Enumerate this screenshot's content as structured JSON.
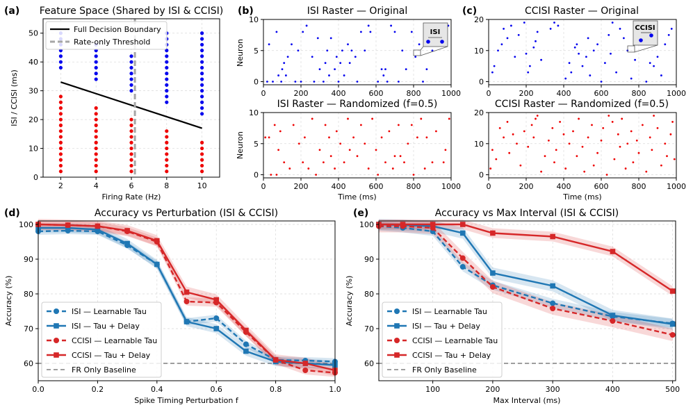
{
  "colors": {
    "blue": "#1f77b4",
    "red": "#d62728",
    "scatter_blue": "#0000ee",
    "scatter_red": "#ee0000",
    "grid": "#d9d9d9",
    "baseline": "#7f7f7f",
    "threshold": "#a6a6a6"
  },
  "chart_data": [
    {
      "panel": "(a)",
      "type": "scatter",
      "title": "Feature Space (Shared by ISI & CCISI)",
      "xlabel": "Firing Rate (Hz)",
      "ylabel": "ISI / CCISI (ms)",
      "xlim": [
        1,
        11
      ],
      "ylim": [
        0,
        55
      ],
      "xticks": [
        2,
        4,
        6,
        8,
        10
      ],
      "yticks": [
        0,
        10,
        20,
        30,
        40,
        50
      ],
      "legend": [
        "Full Decision Boundary",
        "Rate-only Threshold"
      ],
      "boundary": {
        "x": [
          2,
          10
        ],
        "y": [
          33,
          17
        ]
      },
      "threshold_x": 6.2,
      "y_step": 2,
      "columns": [
        {
          "x": 2,
          "red": [
            2,
            28
          ],
          "blue": [
            38,
            50
          ]
        },
        {
          "x": 4,
          "red": [
            2,
            24
          ],
          "blue": [
            34,
            46
          ]
        },
        {
          "x": 6,
          "red": [
            2,
            20
          ],
          "blue": [
            30,
            42
          ]
        },
        {
          "x": 8,
          "red": [
            2,
            16
          ],
          "blue": [
            26,
            50
          ]
        },
        {
          "x": 10,
          "red": [
            2,
            12
          ],
          "blue": [
            22,
            50
          ]
        }
      ]
    },
    {
      "panel": "(b)",
      "type": "scatter",
      "title": "ISI Raster — Original",
      "ylabel": "Neuron",
      "xlim": [
        0,
        1000
      ],
      "ylim": [
        -0.5,
        10
      ],
      "xticks": [
        0,
        200,
        400,
        600,
        800,
        1000
      ],
      "yticks": [
        0,
        5,
        10
      ],
      "inset_label": "ISI",
      "points": [
        [
          20,
          0
        ],
        [
          30,
          6
        ],
        [
          50,
          0
        ],
        [
          70,
          8
        ],
        [
          80,
          1
        ],
        [
          95,
          0
        ],
        [
          100,
          2
        ],
        [
          110,
          3
        ],
        [
          120,
          1
        ],
        [
          130,
          4
        ],
        [
          150,
          6
        ],
        [
          170,
          0
        ],
        [
          185,
          5
        ],
        [
          200,
          0
        ],
        [
          210,
          8
        ],
        [
          230,
          9
        ],
        [
          260,
          4
        ],
        [
          270,
          0
        ],
        [
          290,
          7
        ],
        [
          300,
          2
        ],
        [
          320,
          0
        ],
        [
          330,
          3
        ],
        [
          340,
          5
        ],
        [
          350,
          1
        ],
        [
          360,
          7
        ],
        [
          380,
          2
        ],
        [
          390,
          4
        ],
        [
          400,
          0
        ],
        [
          410,
          3
        ],
        [
          420,
          5
        ],
        [
          430,
          1
        ],
        [
          450,
          6
        ],
        [
          460,
          3
        ],
        [
          470,
          5
        ],
        [
          490,
          4
        ],
        [
          500,
          0
        ],
        [
          520,
          8
        ],
        [
          540,
          5
        ],
        [
          560,
          9
        ],
        [
          570,
          8
        ],
        [
          610,
          0
        ],
        [
          630,
          2
        ],
        [
          640,
          1
        ],
        [
          650,
          2
        ],
        [
          660,
          0
        ],
        [
          680,
          9
        ],
        [
          700,
          8
        ],
        [
          720,
          0
        ],
        [
          740,
          5
        ],
        [
          760,
          2
        ],
        [
          790,
          8
        ],
        [
          810,
          4
        ],
        [
          830,
          6
        ],
        [
          850,
          0
        ],
        [
          870,
          2
        ],
        [
          900,
          5
        ],
        [
          920,
          6
        ],
        [
          960,
          8
        ],
        [
          985,
          9
        ]
      ]
    },
    {
      "panel": "(c)",
      "type": "scatter",
      "title": "CCISI Raster — Original",
      "xlim": [
        0,
        1000
      ],
      "ylim": [
        -1,
        20
      ],
      "xticks": [
        0,
        200,
        400,
        600,
        800,
        1000
      ],
      "yticks": [
        0,
        10,
        20
      ],
      "inset_label": "CCISI",
      "points": [
        [
          20,
          3
        ],
        [
          30,
          5
        ],
        [
          50,
          10
        ],
        [
          70,
          12
        ],
        [
          80,
          17
        ],
        [
          100,
          14
        ],
        [
          120,
          18
        ],
        [
          140,
          8
        ],
        [
          160,
          15
        ],
        [
          190,
          19
        ],
        [
          200,
          9
        ],
        [
          210,
          3
        ],
        [
          220,
          5
        ],
        [
          240,
          11
        ],
        [
          250,
          13
        ],
        [
          260,
          16
        ],
        [
          280,
          7
        ],
        [
          330,
          17
        ],
        [
          350,
          19
        ],
        [
          370,
          18
        ],
        [
          410,
          1
        ],
        [
          430,
          6
        ],
        [
          440,
          3
        ],
        [
          460,
          11
        ],
        [
          470,
          12
        ],
        [
          480,
          9
        ],
        [
          500,
          5
        ],
        [
          520,
          8
        ],
        [
          530,
          14
        ],
        [
          540,
          2
        ],
        [
          560,
          10
        ],
        [
          580,
          12
        ],
        [
          600,
          0
        ],
        [
          620,
          6
        ],
        [
          640,
          15
        ],
        [
          650,
          9
        ],
        [
          660,
          19
        ],
        [
          680,
          3
        ],
        [
          700,
          17
        ],
        [
          720,
          14
        ],
        [
          740,
          10
        ],
        [
          760,
          1
        ],
        [
          780,
          7
        ],
        [
          800,
          15
        ],
        [
          820,
          19
        ],
        [
          840,
          0
        ],
        [
          860,
          6
        ],
        [
          880,
          5
        ],
        [
          900,
          8
        ],
        [
          920,
          2
        ],
        [
          940,
          12
        ],
        [
          960,
          15
        ],
        [
          975,
          17
        ]
      ]
    },
    {
      "panel": "",
      "type": "scatter",
      "title": "ISI Raster — Randomized (f=0.5)",
      "xlabel": "Time (ms)",
      "ylabel": "Neuron",
      "xlim": [
        0,
        1000
      ],
      "ylim": [
        -0.5,
        10
      ],
      "xticks": [
        0,
        200,
        400,
        600,
        800,
        1000
      ],
      "yticks": [
        0,
        5,
        10
      ],
      "points": [
        [
          10,
          6
        ],
        [
          30,
          6
        ],
        [
          40,
          0
        ],
        [
          60,
          8
        ],
        [
          70,
          0
        ],
        [
          80,
          4
        ],
        [
          90,
          7
        ],
        [
          110,
          2
        ],
        [
          140,
          1
        ],
        [
          160,
          8
        ],
        [
          190,
          5
        ],
        [
          210,
          2
        ],
        [
          220,
          6
        ],
        [
          240,
          1
        ],
        [
          260,
          9
        ],
        [
          280,
          0
        ],
        [
          300,
          4
        ],
        [
          320,
          2
        ],
        [
          330,
          8
        ],
        [
          350,
          6
        ],
        [
          360,
          3
        ],
        [
          380,
          1
        ],
        [
          390,
          7
        ],
        [
          410,
          5
        ],
        [
          430,
          2
        ],
        [
          450,
          9
        ],
        [
          460,
          4
        ],
        [
          480,
          6
        ],
        [
          500,
          3
        ],
        [
          520,
          8
        ],
        [
          540,
          5
        ],
        [
          560,
          1
        ],
        [
          580,
          9
        ],
        [
          600,
          4
        ],
        [
          610,
          0
        ],
        [
          630,
          6
        ],
        [
          650,
          2
        ],
        [
          670,
          7
        ],
        [
          690,
          1
        ],
        [
          700,
          3
        ],
        [
          720,
          8
        ],
        [
          730,
          3
        ],
        [
          750,
          2
        ],
        [
          770,
          5
        ],
        [
          790,
          8
        ],
        [
          800,
          0
        ],
        [
          820,
          6
        ],
        [
          840,
          9
        ],
        [
          860,
          1
        ],
        [
          870,
          6
        ],
        [
          900,
          2
        ],
        [
          920,
          7
        ],
        [
          960,
          2
        ],
        [
          970,
          4
        ],
        [
          990,
          9
        ]
      ]
    },
    {
      "panel": "",
      "type": "scatter",
      "title": "CCISI Raster — Randomized (f=0.5)",
      "xlabel": "Time (ms)",
      "xlim": [
        0,
        1000
      ],
      "ylim": [
        -1,
        20
      ],
      "xticks": [
        0,
        200,
        400,
        600,
        800,
        1000
      ],
      "yticks": [
        0,
        10,
        20
      ],
      "points": [
        [
          10,
          2
        ],
        [
          20,
          8
        ],
        [
          40,
          5
        ],
        [
          60,
          15
        ],
        [
          80,
          12
        ],
        [
          100,
          17
        ],
        [
          110,
          7
        ],
        [
          130,
          13
        ],
        [
          150,
          10
        ],
        [
          170,
          3
        ],
        [
          190,
          14
        ],
        [
          210,
          9
        ],
        [
          230,
          16
        ],
        [
          240,
          12
        ],
        [
          250,
          18
        ],
        [
          260,
          19
        ],
        [
          280,
          1
        ],
        [
          300,
          6
        ],
        [
          320,
          11
        ],
        [
          340,
          15
        ],
        [
          350,
          4
        ],
        [
          360,
          8
        ],
        [
          380,
          17
        ],
        [
          400,
          13
        ],
        [
          410,
          2
        ],
        [
          430,
          10
        ],
        [
          450,
          14
        ],
        [
          470,
          6
        ],
        [
          480,
          18
        ],
        [
          500,
          9
        ],
        [
          510,
          1
        ],
        [
          530,
          12
        ],
        [
          550,
          16
        ],
        [
          560,
          3
        ],
        [
          580,
          7
        ],
        [
          600,
          11
        ],
        [
          610,
          15
        ],
        [
          630,
          0
        ],
        [
          640,
          19
        ],
        [
          660,
          17
        ],
        [
          670,
          5
        ],
        [
          690,
          13
        ],
        [
          700,
          9
        ],
        [
          710,
          18
        ],
        [
          730,
          2
        ],
        [
          740,
          10
        ],
        [
          760,
          14
        ],
        [
          770,
          4
        ],
        [
          790,
          11
        ],
        [
          800,
          7
        ],
        [
          820,
          16
        ],
        [
          840,
          1
        ],
        [
          860,
          12
        ],
        [
          870,
          8
        ],
        [
          880,
          19
        ],
        [
          900,
          15
        ],
        [
          920,
          3
        ],
        [
          940,
          10
        ],
        [
          950,
          6
        ],
        [
          970,
          13
        ],
        [
          980,
          17
        ],
        [
          990,
          5
        ]
      ]
    },
    {
      "panel": "(d)",
      "type": "line",
      "title": "Accuracy vs Perturbation (ISI & CCISI)",
      "xlabel": "Spike Timing Perturbation f",
      "ylabel": "Accuracy (%)",
      "xlim": [
        0,
        1
      ],
      "ylim": [
        55,
        101
      ],
      "xticks": [
        0,
        0.2,
        0.4,
        0.6,
        0.8,
        1.0
      ],
      "xtick_labels": [
        "0.0",
        "0.2",
        "0.4",
        "0.6",
        "0.8",
        "1.0"
      ],
      "yticks": [
        60,
        70,
        80,
        90,
        100
      ],
      "x": [
        0,
        0.1,
        0.2,
        0.3,
        0.4,
        0.5,
        0.6,
        0.7,
        0.8,
        0.9,
        1.0
      ],
      "baseline": 60,
      "series": [
        {
          "name": "ISI — Learnable Tau",
          "color": "blue",
          "dash": true,
          "marker": "circle",
          "values": [
            98,
            98.2,
            98,
            94,
            88.5,
            72,
            73,
            65.5,
            61,
            60.8,
            60.5
          ],
          "band": 1.0
        },
        {
          "name": "ISI — Tau + Delay",
          "color": "blue",
          "dash": false,
          "marker": "square",
          "values": [
            99,
            99,
            98.5,
            94.5,
            88.5,
            72,
            70,
            63.5,
            60.5,
            60,
            59.5
          ],
          "band": 1.3
        },
        {
          "name": "CCISI — Learnable Tau",
          "color": "red",
          "dash": true,
          "marker": "circle",
          "values": [
            100,
            99.8,
            99.5,
            98,
            95,
            77.8,
            77.5,
            69,
            61,
            58,
            57.3
          ],
          "band": 1.2
        },
        {
          "name": "CCISI — Tau + Delay",
          "color": "red",
          "dash": false,
          "marker": "square",
          "values": [
            100,
            99.8,
            99.5,
            98.2,
            95.3,
            80.5,
            78.3,
            69.5,
            61,
            60,
            58
          ],
          "band": 1.6
        }
      ],
      "legend_extra": "FR Only Baseline"
    },
    {
      "panel": "(e)",
      "type": "line",
      "title": "Accuracy vs Max Interval (ISI & CCISI)",
      "xlabel": "Max Interval (ms)",
      "ylabel": "Accuracy (%)",
      "xlim": [
        10,
        505
      ],
      "ylim": [
        55,
        101
      ],
      "xticks": [
        100,
        200,
        300,
        400,
        500
      ],
      "xtick_labels": [
        "100",
        "200",
        "300",
        "400",
        "500"
      ],
      "yticks": [
        60,
        70,
        80,
        90,
        100
      ],
      "x": [
        10,
        50,
        100,
        150,
        200,
        300,
        400,
        500
      ],
      "baseline": 60,
      "series": [
        {
          "name": "ISI — Learnable Tau",
          "color": "blue",
          "dash": true,
          "marker": "circle",
          "values": [
            99.5,
            99,
            98,
            87.8,
            82.5,
            77.3,
            73.5,
            71.5
          ],
          "band": 1.3
        },
        {
          "name": "ISI — Tau + Delay",
          "color": "blue",
          "dash": false,
          "marker": "square",
          "values": [
            100,
            99.8,
            99.5,
            97.5,
            86,
            82.3,
            73.8,
            71.3
          ],
          "band": 1.6
        },
        {
          "name": "CCISI — Learnable Tau",
          "color": "red",
          "dash": true,
          "marker": "circle",
          "values": [
            99.5,
            99.5,
            99,
            90.3,
            82,
            75.8,
            72.2,
            68.2
          ],
          "band": 1.8
        },
        {
          "name": "CCISI — Tau + Delay",
          "color": "red",
          "dash": false,
          "marker": "square",
          "values": [
            100,
            100,
            100,
            100,
            97.5,
            96.5,
            92.2,
            80.8
          ],
          "band": 1.4
        }
      ],
      "legend_extra": "FR Only Baseline"
    }
  ]
}
